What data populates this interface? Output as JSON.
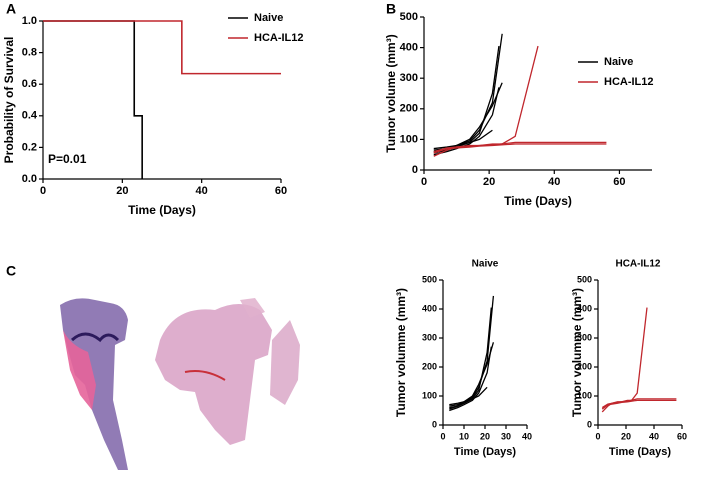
{
  "chart_data": [
    {
      "type": "step",
      "panel": "A",
      "xlabel": "Time (Days)",
      "ylabel": "Probability of Survival",
      "annotation": "P=0.01",
      "xlim": [
        0,
        60
      ],
      "xticks": [
        0,
        20,
        40,
        60
      ],
      "ylim": [
        0,
        1
      ],
      "yticks": [
        {
          "value": 0,
          "label": "0.0"
        },
        {
          "value": 0.2,
          "label": "0.2"
        },
        {
          "value": 0.4,
          "label": "0.4"
        },
        {
          "value": 0.6,
          "label": "0.6"
        },
        {
          "value": 0.8,
          "label": "0.8"
        },
        {
          "value": 1,
          "label": "1.0"
        }
      ],
      "legend": true,
      "series": [
        {
          "name": "Naive",
          "color": "#000000",
          "x": [
            0,
            23,
            25
          ],
          "values": [
            1,
            0.4,
            0
          ]
        },
        {
          "name": "HCA-IL12",
          "color": "#c0272d",
          "x": [
            0,
            35,
            60
          ],
          "values": [
            1,
            0.667,
            0.667
          ]
        }
      ]
    },
    {
      "type": "line",
      "panel": "B",
      "xlabel": "Time (Days)",
      "ylabel": "Tumor volume (mm³)",
      "xlim": [
        0,
        70
      ],
      "xticks": [
        0,
        20,
        40,
        60
      ],
      "ylim": [
        0,
        500
      ],
      "yticks": [
        0,
        100,
        200,
        300,
        400,
        500
      ],
      "legend": true,
      "series": [
        {
          "name": "Naive",
          "color": "#000000",
          "mice": [
            {
              "x": [
                3,
                7,
                10,
                14,
                17,
                21,
                24
              ],
              "values": [
                65,
                70,
                80,
                95,
                130,
                220,
                445
              ]
            },
            {
              "x": [
                3,
                7,
                10,
                14,
                17,
                21,
                23
              ],
              "values": [
                60,
                65,
                75,
                90,
                120,
                250,
                405
              ]
            },
            {
              "x": [
                3,
                7,
                10,
                14,
                17,
                21,
                24
              ],
              "values": [
                55,
                65,
                80,
                100,
                140,
                210,
                285
              ]
            },
            {
              "x": [
                3,
                7,
                10,
                14,
                17,
                21,
                23
              ],
              "values": [
                50,
                60,
                70,
                85,
                110,
                180,
                270
              ]
            },
            {
              "x": [
                3,
                7,
                10,
                14,
                17,
                21
              ],
              "values": [
                70,
                75,
                80,
                90,
                100,
                130
              ]
            }
          ]
        },
        {
          "name": "HCA-IL12",
          "color": "#c0272d",
          "mice": [
            {
              "x": [
                3,
                7,
                10,
                14,
                17,
                21,
                24,
                28,
                35
              ],
              "values": [
                45,
                65,
                75,
                80,
                80,
                85,
                85,
                110,
                405
              ]
            },
            {
              "x": [
                3,
                7,
                10,
                14,
                17,
                21,
                28,
                35,
                42,
                49,
                56
              ],
              "values": [
                55,
                70,
                72,
                75,
                78,
                80,
                85,
                85,
                85,
                85,
                85
              ]
            },
            {
              "x": [
                3,
                7,
                10,
                14,
                17,
                21,
                28,
                35,
                42,
                49,
                56
              ],
              "values": [
                60,
                72,
                75,
                78,
                80,
                82,
                90,
                90,
                90,
                90,
                90
              ]
            }
          ]
        }
      ]
    },
    {
      "type": "line",
      "panel": "C",
      "title": "Naive",
      "xlabel": "Time (Days)",
      "ylabel": "Tumor volumme (mm³)",
      "xlim": [
        0,
        40
      ],
      "xticks": [
        0,
        10,
        20,
        30,
        40
      ],
      "ylim": [
        0,
        500
      ],
      "yticks": [
        0,
        100,
        200,
        300,
        400,
        500
      ],
      "series": [
        {
          "color": "#000000",
          "mice": [
            {
              "x": [
                3,
                7,
                10,
                14,
                17,
                21,
                24
              ],
              "values": [
                65,
                70,
                80,
                95,
                130,
                220,
                445
              ]
            },
            {
              "x": [
                3,
                7,
                10,
                14,
                17,
                21,
                23
              ],
              "values": [
                60,
                65,
                75,
                90,
                120,
                250,
                405
              ]
            },
            {
              "x": [
                3,
                7,
                10,
                14,
                17,
                21,
                24
              ],
              "values": [
                55,
                65,
                80,
                100,
                140,
                210,
                285
              ]
            },
            {
              "x": [
                3,
                7,
                10,
                14,
                17,
                21,
                23
              ],
              "values": [
                50,
                60,
                70,
                85,
                110,
                180,
                270
              ]
            },
            {
              "x": [
                3,
                7,
                10,
                14,
                17,
                21
              ],
              "values": [
                70,
                75,
                80,
                90,
                100,
                130
              ]
            }
          ]
        }
      ]
    },
    {
      "type": "line",
      "title": "HCA-IL12",
      "xlabel": "Time (Days)",
      "ylabel": "Tumor volumme (mm³)",
      "xlim": [
        0,
        60
      ],
      "xticks": [
        0,
        20,
        40,
        60
      ],
      "ylim": [
        0,
        500
      ],
      "yticks": [
        0,
        100,
        200,
        300,
        400,
        500
      ],
      "series": [
        {
          "color": "#c0272d",
          "mice": [
            {
              "x": [
                3,
                7,
                10,
                14,
                17,
                21,
                24,
                28,
                35
              ],
              "values": [
                45,
                65,
                75,
                80,
                80,
                85,
                85,
                110,
                405
              ]
            },
            {
              "x": [
                3,
                7,
                10,
                14,
                17,
                21,
                28,
                35,
                42,
                49,
                56
              ],
              "values": [
                55,
                70,
                72,
                75,
                78,
                80,
                85,
                85,
                85,
                85,
                85
              ]
            },
            {
              "x": [
                3,
                7,
                10,
                14,
                17,
                21,
                28,
                35,
                42,
                49,
                56
              ],
              "values": [
                60,
                72,
                75,
                78,
                80,
                82,
                90,
                90,
                90,
                90,
                90
              ]
            }
          ]
        }
      ]
    }
  ]
}
